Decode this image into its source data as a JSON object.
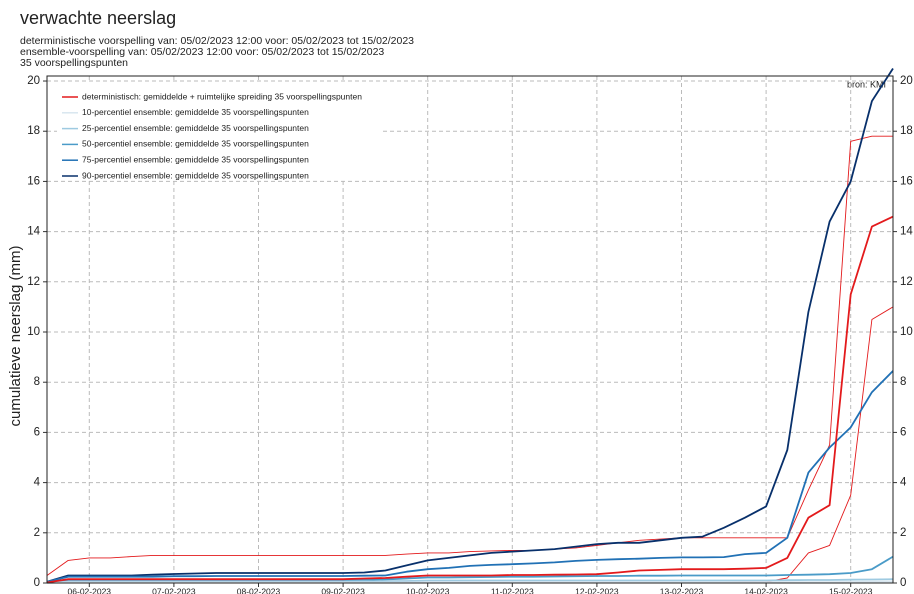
{
  "chart_data": {
    "type": "line",
    "title": "verwachte neerslag",
    "subtitle": [
      "deterministische voorspelling van: 05/02/2023 12:00 voor: 05/02/2023 tot 15/02/2023",
      "ensemble-voorspelling van: 05/02/2023 12:00 voor: 05/02/2023 tot 15/02/2023",
      "35 voorspellingspunten"
    ],
    "y_label": "cumulatieve neerslag (mm)",
    "source": "bron: KMI",
    "grid": true,
    "legend": "top-left",
    "xlim": [
      0,
      10
    ],
    "xticks": [
      {
        "value": 0.5,
        "label": "06-02-2023"
      },
      {
        "value": 1.5,
        "label": "07-02-2023"
      },
      {
        "value": 2.5,
        "label": "08-02-2023"
      },
      {
        "value": 3.5,
        "label": "09-02-2023"
      },
      {
        "value": 4.5,
        "label": "10-02-2023"
      },
      {
        "value": 5.5,
        "label": "11-02-2023"
      },
      {
        "value": 6.5,
        "label": "12-02-2023"
      },
      {
        "value": 7.5,
        "label": "13-02-2023"
      },
      {
        "value": 8.5,
        "label": "14-02-2023"
      },
      {
        "value": 9.5,
        "label": "15-02-2023"
      }
    ],
    "ylim": [
      0,
      20.2
    ],
    "yticks": [
      0,
      2,
      4,
      6,
      8,
      10,
      12,
      14,
      16,
      18,
      20
    ],
    "x": [
      0,
      0.25,
      0.5,
      0.75,
      1,
      1.25,
      1.5,
      1.75,
      2,
      2.25,
      2.5,
      2.75,
      3,
      3.25,
      3.5,
      3.75,
      4,
      4.25,
      4.5,
      4.75,
      5,
      5.25,
      5.5,
      5.75,
      6,
      6.25,
      6.5,
      6.75,
      7,
      7.25,
      7.5,
      7.75,
      8,
      8.25,
      8.5,
      8.75,
      9,
      9.25,
      9.5,
      9.75,
      10
    ],
    "series": [
      {
        "name": "deterministisch: gemiddelde + ruimtelijke spreiding 35 voorspellingspunten",
        "color": "#e31a1c",
        "values": [
          0.02,
          0.15,
          0.15,
          0.15,
          0.15,
          0.15,
          0.15,
          0.15,
          0.15,
          0.15,
          0.15,
          0.15,
          0.15,
          0.15,
          0.15,
          0.18,
          0.2,
          0.25,
          0.3,
          0.3,
          0.3,
          0.3,
          0.32,
          0.32,
          0.33,
          0.34,
          0.35,
          0.42,
          0.5,
          0.52,
          0.55,
          0.55,
          0.55,
          0.57,
          0.6,
          1.0,
          2.6,
          3.1,
          11.5,
          14.2,
          14.6
        ],
        "upper": [
          0.3,
          0.9,
          1.0,
          1.0,
          1.05,
          1.1,
          1.1,
          1.1,
          1.1,
          1.1,
          1.1,
          1.1,
          1.1,
          1.1,
          1.1,
          1.1,
          1.1,
          1.15,
          1.2,
          1.2,
          1.25,
          1.28,
          1.3,
          1.3,
          1.35,
          1.4,
          1.5,
          1.6,
          1.7,
          1.75,
          1.8,
          1.8,
          1.8,
          1.8,
          1.8,
          1.8,
          3.7,
          5.5,
          17.6,
          17.8,
          17.8
        ],
        "lower": [
          0,
          0.02,
          0.02,
          0.02,
          0.02,
          0.02,
          0.02,
          0.02,
          0.02,
          0.02,
          0.02,
          0.02,
          0.02,
          0.02,
          0.02,
          0.02,
          0.02,
          0.03,
          0.03,
          0.03,
          0.03,
          0.03,
          0.03,
          0.03,
          0.03,
          0.03,
          0.03,
          0.04,
          0.04,
          0.04,
          0.04,
          0.04,
          0.04,
          0.05,
          0.05,
          0.2,
          1.2,
          1.5,
          3.5,
          10.5,
          11.0
        ]
      },
      {
        "name": "10-percentiel ensemble: gemiddelde 35 voorspellingspunten",
        "color": "#d9e6ef",
        "values": [
          0,
          0.02,
          0.02,
          0.02,
          0.02,
          0.02,
          0.02,
          0.02,
          0.02,
          0.02,
          0.02,
          0.02,
          0.02,
          0.02,
          0.02,
          0.02,
          0.02,
          0.02,
          0.03,
          0.03,
          0.03,
          0.03,
          0.03,
          0.03,
          0.03,
          0.03,
          0.03,
          0.03,
          0.03,
          0.03,
          0.03,
          0.03,
          0.03,
          0.03,
          0.03,
          0.03,
          0.03,
          0.03,
          0.04,
          0.05,
          0.06
        ]
      },
      {
        "name": "25-percentiel ensemble: gemiddelde 35 voorspellingspunten",
        "color": "#9ecae1",
        "values": [
          0,
          0.05,
          0.05,
          0.05,
          0.05,
          0.05,
          0.05,
          0.05,
          0.05,
          0.05,
          0.05,
          0.05,
          0.05,
          0.05,
          0.05,
          0.06,
          0.07,
          0.08,
          0.1,
          0.1,
          0.1,
          0.1,
          0.1,
          0.1,
          0.1,
          0.1,
          0.1,
          0.1,
          0.1,
          0.1,
          0.1,
          0.1,
          0.1,
          0.1,
          0.1,
          0.11,
          0.12,
          0.12,
          0.13,
          0.14,
          0.15
        ]
      },
      {
        "name": "50-percentiel ensemble: gemiddelde 35 voorspellingspunten",
        "color": "#4a9bc8",
        "values": [
          0.02,
          0.12,
          0.12,
          0.12,
          0.12,
          0.12,
          0.12,
          0.12,
          0.12,
          0.12,
          0.12,
          0.12,
          0.12,
          0.12,
          0.12,
          0.13,
          0.14,
          0.18,
          0.22,
          0.22,
          0.23,
          0.24,
          0.25,
          0.25,
          0.26,
          0.27,
          0.28,
          0.28,
          0.29,
          0.29,
          0.3,
          0.3,
          0.3,
          0.3,
          0.3,
          0.32,
          0.33,
          0.35,
          0.4,
          0.55,
          1.05
        ]
      },
      {
        "name": "75-percentiel ensemble: gemiddelde 35 voorspellingspunten",
        "color": "#2171b5",
        "values": [
          0.05,
          0.25,
          0.25,
          0.25,
          0.25,
          0.25,
          0.27,
          0.27,
          0.28,
          0.28,
          0.28,
          0.28,
          0.28,
          0.28,
          0.28,
          0.29,
          0.3,
          0.45,
          0.55,
          0.6,
          0.68,
          0.72,
          0.75,
          0.78,
          0.82,
          0.88,
          0.92,
          0.95,
          0.97,
          1.0,
          1.02,
          1.02,
          1.03,
          1.15,
          1.2,
          1.8,
          4.4,
          5.4,
          6.2,
          7.6,
          8.45
        ]
      },
      {
        "name": "90-percentiel ensemble: gemiddelde 35 voorspellingspunten",
        "color": "#08306b",
        "values": [
          0.05,
          0.3,
          0.3,
          0.3,
          0.3,
          0.33,
          0.36,
          0.38,
          0.4,
          0.4,
          0.4,
          0.4,
          0.4,
          0.4,
          0.4,
          0.42,
          0.5,
          0.7,
          0.9,
          1.0,
          1.1,
          1.2,
          1.25,
          1.3,
          1.35,
          1.45,
          1.55,
          1.6,
          1.6,
          1.7,
          1.8,
          1.85,
          2.2,
          2.6,
          3.05,
          5.3,
          10.8,
          14.4,
          16.0,
          19.2,
          20.5
        ]
      }
    ]
  }
}
